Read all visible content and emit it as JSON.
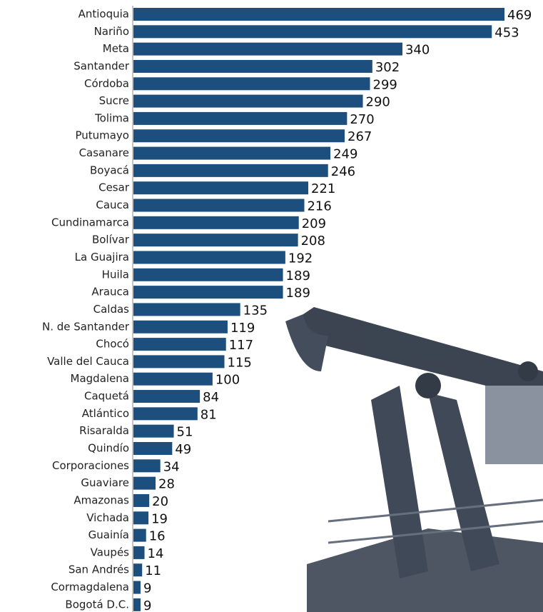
{
  "chart_data": {
    "type": "barh",
    "categories": [
      "Antioquia",
      "Nariño",
      "Meta",
      "Santander",
      "Córdoba",
      "Sucre",
      "Tolima",
      "Putumayo",
      "Casanare",
      "Boyacá",
      "Cesar",
      "Cauca",
      "Cundinamarca",
      "Bolívar",
      "La Guajira",
      "Huila",
      "Arauca",
      "Caldas",
      "N. de Santander",
      "Chocó",
      "Valle del Cauca",
      "Magdalena",
      "Caquetá",
      "Atlántico",
      "Risaralda",
      "Quindío",
      "Corporaciones",
      "Guaviare",
      "Amazonas",
      "Vichada",
      "Guainía",
      "Vaupés",
      "San Andrés",
      "Cormagdalena",
      "Bogotá D.C."
    ],
    "values": [
      469,
      453,
      340,
      302,
      299,
      290,
      270,
      267,
      249,
      246,
      221,
      216,
      209,
      208,
      192,
      189,
      189,
      135,
      119,
      117,
      115,
      100,
      84,
      81,
      51,
      49,
      34,
      28,
      20,
      19,
      16,
      14,
      11,
      9,
      9
    ],
    "color": "#1c4f7d"
  }
}
